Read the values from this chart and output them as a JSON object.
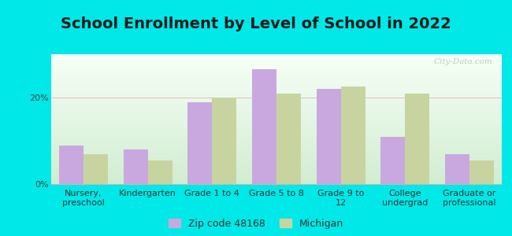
{
  "title": "School Enrollment by Level of School in 2022",
  "categories": [
    "Nursery,\npreschool",
    "Kindergarten",
    "Grade 1 to 4",
    "Grade 5 to 8",
    "Grade 9 to\n12",
    "College\nundergrad",
    "Graduate or\nprofessional"
  ],
  "zip_values": [
    9.0,
    8.0,
    19.0,
    26.5,
    22.0,
    11.0,
    7.0
  ],
  "mi_values": [
    7.0,
    5.5,
    20.0,
    21.0,
    22.5,
    21.0,
    5.5
  ],
  "zip_color": "#c9a8e0",
  "mi_color": "#c8d4a0",
  "background_outer": "#00e8e8",
  "legend_zip": "Zip code 48168",
  "legend_mi": "Michigan",
  "yticks": [
    0,
    20
  ],
  "ylim": [
    0,
    30
  ],
  "bar_width": 0.38,
  "title_fontsize": 14,
  "tick_fontsize": 8,
  "legend_fontsize": 9,
  "watermark": "City-Data.com"
}
